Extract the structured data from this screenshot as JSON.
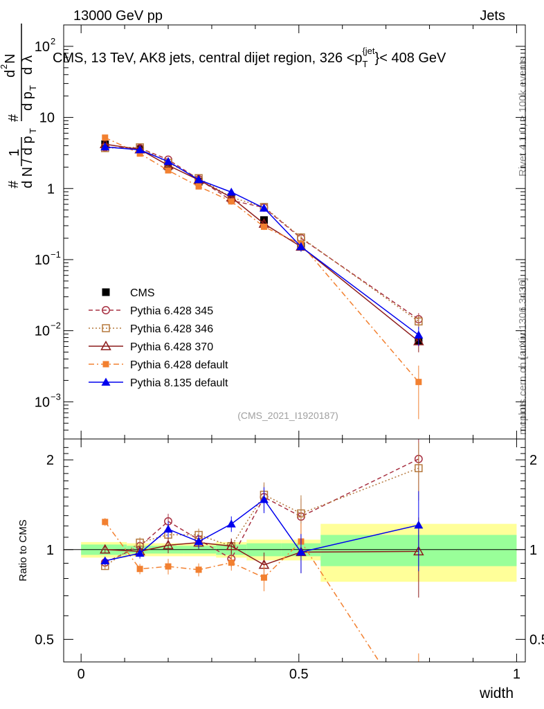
{
  "header": {
    "left": "13000 GeV pp",
    "right": "Jets"
  },
  "side": {
    "rivet": "Rivet 4.1.0, ≥ 100k events",
    "mcplots": "mcplots.cern.ch [arXiv:1306.3436]"
  },
  "chart_data": {
    "type": "line",
    "title": "CMS, 13 TeV, AK8 jets, central dijet region, 326 < p_T^{jet} < 408 GeV",
    "title_parts": {
      "main": "CMS, 13 TeV, AK8 jets, central dijet region, 326 <p",
      "sub": "T",
      "sup": "{jet",
      "tail": "}< 408 GeV"
    },
    "analysis_tag": "(CMS_2021_I1920187)",
    "xlabel": "width",
    "ylabel_top": "1/N dN/dp_T dλ",
    "ylabel_ratio": "Ratio to CMS",
    "xlim": [
      -0.04,
      1.02
    ],
    "ylim_main_log": [
      0.0003,
      200
    ],
    "ylim_ratio_log": [
      0.42,
      2.35
    ],
    "x_ticks": [
      {
        "v": 0,
        "label": "0"
      },
      {
        "v": 0.5,
        "label": "0.5"
      },
      {
        "v": 1,
        "label": "1"
      }
    ],
    "y_ticks_main": [
      {
        "v": 100,
        "base": "10",
        "exp": "2"
      },
      {
        "v": 10,
        "base": "10",
        "exp": ""
      },
      {
        "v": 1,
        "base": "1",
        "exp": ""
      },
      {
        "v": 0.1,
        "base": "10",
        "exp": "−1"
      },
      {
        "v": 0.01,
        "base": "10",
        "exp": "−2"
      },
      {
        "v": 0.001,
        "base": "10",
        "exp": "−3"
      }
    ],
    "y_ticks_ratio": [
      {
        "v": 2,
        "label": "2"
      },
      {
        "v": 1,
        "label": "1"
      },
      {
        "v": 0.5,
        "label": "0.5"
      }
    ],
    "x": [
      0.055,
      0.135,
      0.2,
      0.27,
      0.345,
      0.42,
      0.505,
      0.775
    ],
    "bins": [
      [
        0.0,
        0.105
      ],
      [
        0.105,
        0.165
      ],
      [
        0.165,
        0.235
      ],
      [
        0.235,
        0.31
      ],
      [
        0.31,
        0.38
      ],
      [
        0.38,
        0.46
      ],
      [
        0.46,
        0.55
      ],
      [
        0.55,
        1.0
      ]
    ],
    "stat_band": [
      0.04,
      0.03,
      0.03,
      0.03,
      0.04,
      0.05,
      0.05,
      0.12
    ],
    "total_band": [
      0.06,
      0.05,
      0.05,
      0.05,
      0.06,
      0.08,
      0.08,
      0.22
    ],
    "series": [
      {
        "name": "CMS",
        "color": "#000000",
        "marker": "square-filled",
        "line": "none",
        "values": [
          4.2,
          3.6,
          2.05,
          1.25,
          0.73,
          0.36,
          0.155,
          0.0072
        ]
      },
      {
        "name": "Pythia 6.428 345",
        "color": "#a83243",
        "marker": "circle-open",
        "line": "dash",
        "values": [
          3.8,
          3.7,
          2.55,
          1.35,
          0.68,
          0.54,
          0.2,
          0.0145
        ],
        "errors": [
          0.03,
          0.04,
          0.06,
          0.05,
          0.06,
          0.1,
          0.15,
          0.22
        ]
      },
      {
        "name": "Pythia 6.428 346",
        "color": "#b5783c",
        "marker": "square-open",
        "line": "dot",
        "values": [
          3.7,
          3.8,
          2.3,
          1.4,
          0.75,
          0.55,
          0.205,
          0.0135
        ],
        "errors": [
          0.03,
          0.04,
          0.06,
          0.05,
          0.06,
          0.1,
          0.15,
          0.22
        ]
      },
      {
        "name": "Pythia 6.428 370",
        "color": "#8b1a1a",
        "marker": "triangle-open",
        "line": "solid",
        "values": [
          4.2,
          3.55,
          2.12,
          1.32,
          0.75,
          0.32,
          0.152,
          0.0071
        ],
        "errors": [
          0.03,
          0.04,
          0.06,
          0.05,
          0.06,
          0.1,
          0.15,
          0.3
        ]
      },
      {
        "name": "Pythia 6.428 default",
        "color": "#f28030",
        "marker": "square-filled-small",
        "line": "dashdot",
        "values": [
          5.2,
          3.1,
          1.8,
          1.07,
          0.66,
          0.29,
          0.165,
          0.0019
        ],
        "errors": [
          0.03,
          0.04,
          0.06,
          0.05,
          0.06,
          0.1,
          0.15,
          0.7
        ]
      },
      {
        "name": "Pythia 8.135 default",
        "color": "#0000ee",
        "marker": "triangle-filled",
        "line": "solid",
        "values": [
          3.85,
          3.5,
          2.4,
          1.33,
          0.89,
          0.53,
          0.152,
          0.0087
        ],
        "errors": [
          0.03,
          0.04,
          0.06,
          0.05,
          0.06,
          0.1,
          0.15,
          0.3
        ]
      }
    ]
  }
}
